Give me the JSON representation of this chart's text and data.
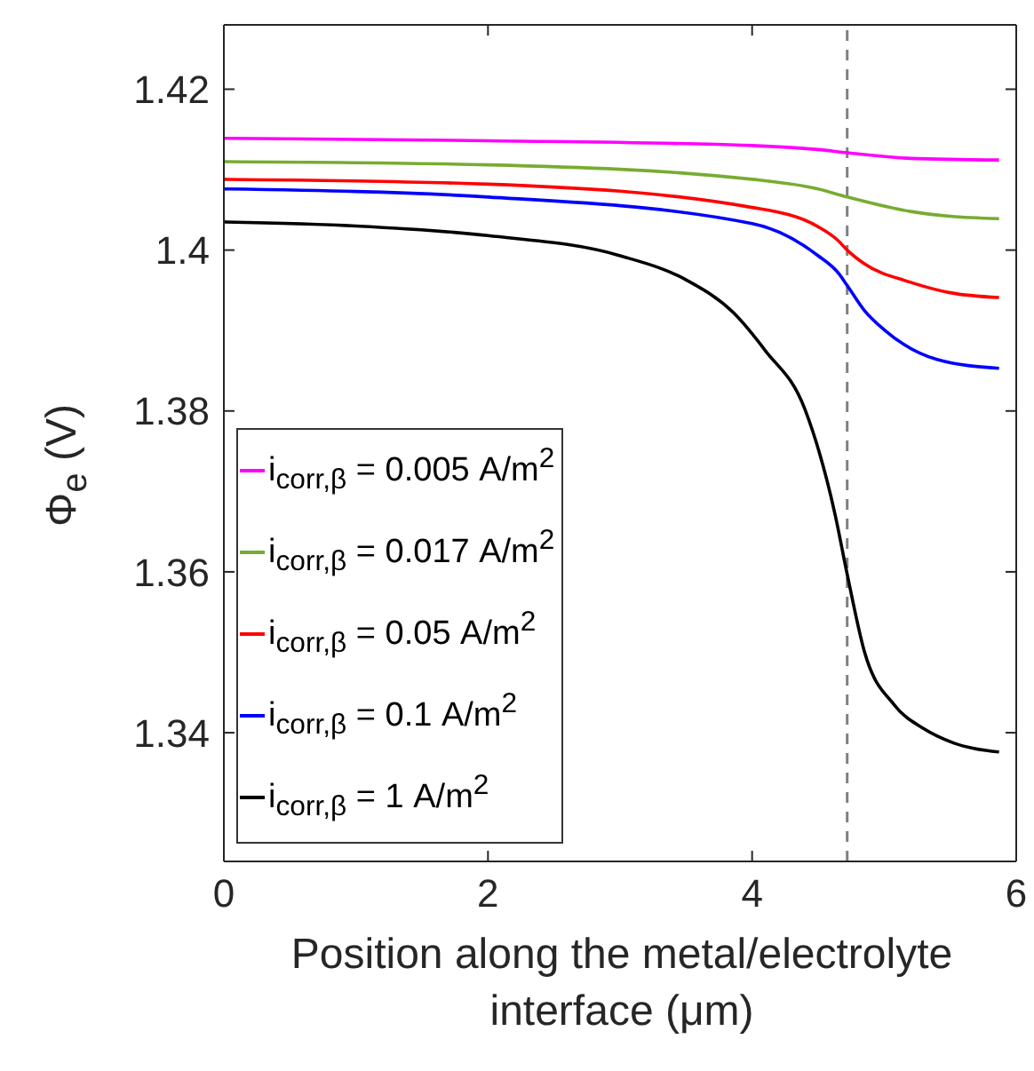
{
  "chart_data": {
    "type": "line",
    "xlabel": "Position along the metal/electrolyte interface (μm)",
    "ylabel": "Φ$_{e}$ (V)",
    "xlim": [
      0,
      6
    ],
    "xticks": [
      0,
      2,
      4,
      6
    ],
    "ylim": [
      1.324,
      1.428
    ],
    "yticks": [
      1.34,
      1.36,
      1.38,
      1.4,
      1.42
    ],
    "grid": false,
    "legend": "bottom left",
    "marker": "none",
    "line_style": "solid",
    "ref_lines": [
      {
        "axis": "x",
        "value": 4.72,
        "color": "#808080",
        "line_style": "dashed"
      }
    ],
    "series": [
      {
        "name": "i$_{corr,β}$ = 0.005 A/m$^{2}$",
        "color": "#ff00ff",
        "x": [
          0,
          2,
          4,
          4.5,
          4.72,
          5.2,
          5.87
        ],
        "values": [
          1.4139,
          1.4136,
          1.413,
          1.4125,
          1.4121,
          1.4114,
          1.4112
        ]
      },
      {
        "name": "i$_{corr,β}$ = 0.017 A/m$^{2}$",
        "color": "#77ac30",
        "x": [
          0,
          2,
          4,
          4.5,
          4.72,
          5.2,
          5.5,
          5.87
        ],
        "values": [
          1.411,
          1.4106,
          1.4088,
          1.4076,
          1.4066,
          1.4048,
          1.4042,
          1.4039
        ]
      },
      {
        "name": "i$_{corr,β}$ = 0.05 A/m$^{2}$",
        "color": "#ff0000",
        "x": [
          0,
          2,
          4,
          4.5,
          4.65,
          4.72,
          4.85,
          5.2,
          5.5,
          5.87
        ],
        "values": [
          1.4088,
          1.4082,
          1.4053,
          1.4029,
          1.4012,
          1.4,
          1.3983,
          1.396,
          1.3947,
          1.3941
        ]
      },
      {
        "name": "i$_{corr,β}$ = 0.1 A/m$^{2}$",
        "color": "#0000ff",
        "x": [
          0,
          2,
          4,
          4.5,
          4.65,
          4.72,
          4.85,
          5,
          5.4,
          5.87
        ],
        "values": [
          1.4076,
          1.4066,
          1.4033,
          1.3993,
          1.3972,
          1.3956,
          1.3925,
          1.3901,
          1.3864,
          1.3853
        ]
      },
      {
        "name": "i$_{corr,β}$ = 1 A/m$^{2}$",
        "color": "#000000",
        "x": [
          0,
          1,
          2,
          3,
          3.5,
          3.86,
          4.1,
          4.4,
          4.63,
          4.72,
          4.85,
          5.08,
          5.3,
          5.53,
          5.87
        ],
        "values": [
          1.4035,
          1.403,
          1.4018,
          1.3993,
          1.3963,
          1.3922,
          1.3875,
          1.3802,
          1.367,
          1.3597,
          1.3501,
          1.3434,
          1.3405,
          1.3387,
          1.3376
        ]
      }
    ]
  }
}
